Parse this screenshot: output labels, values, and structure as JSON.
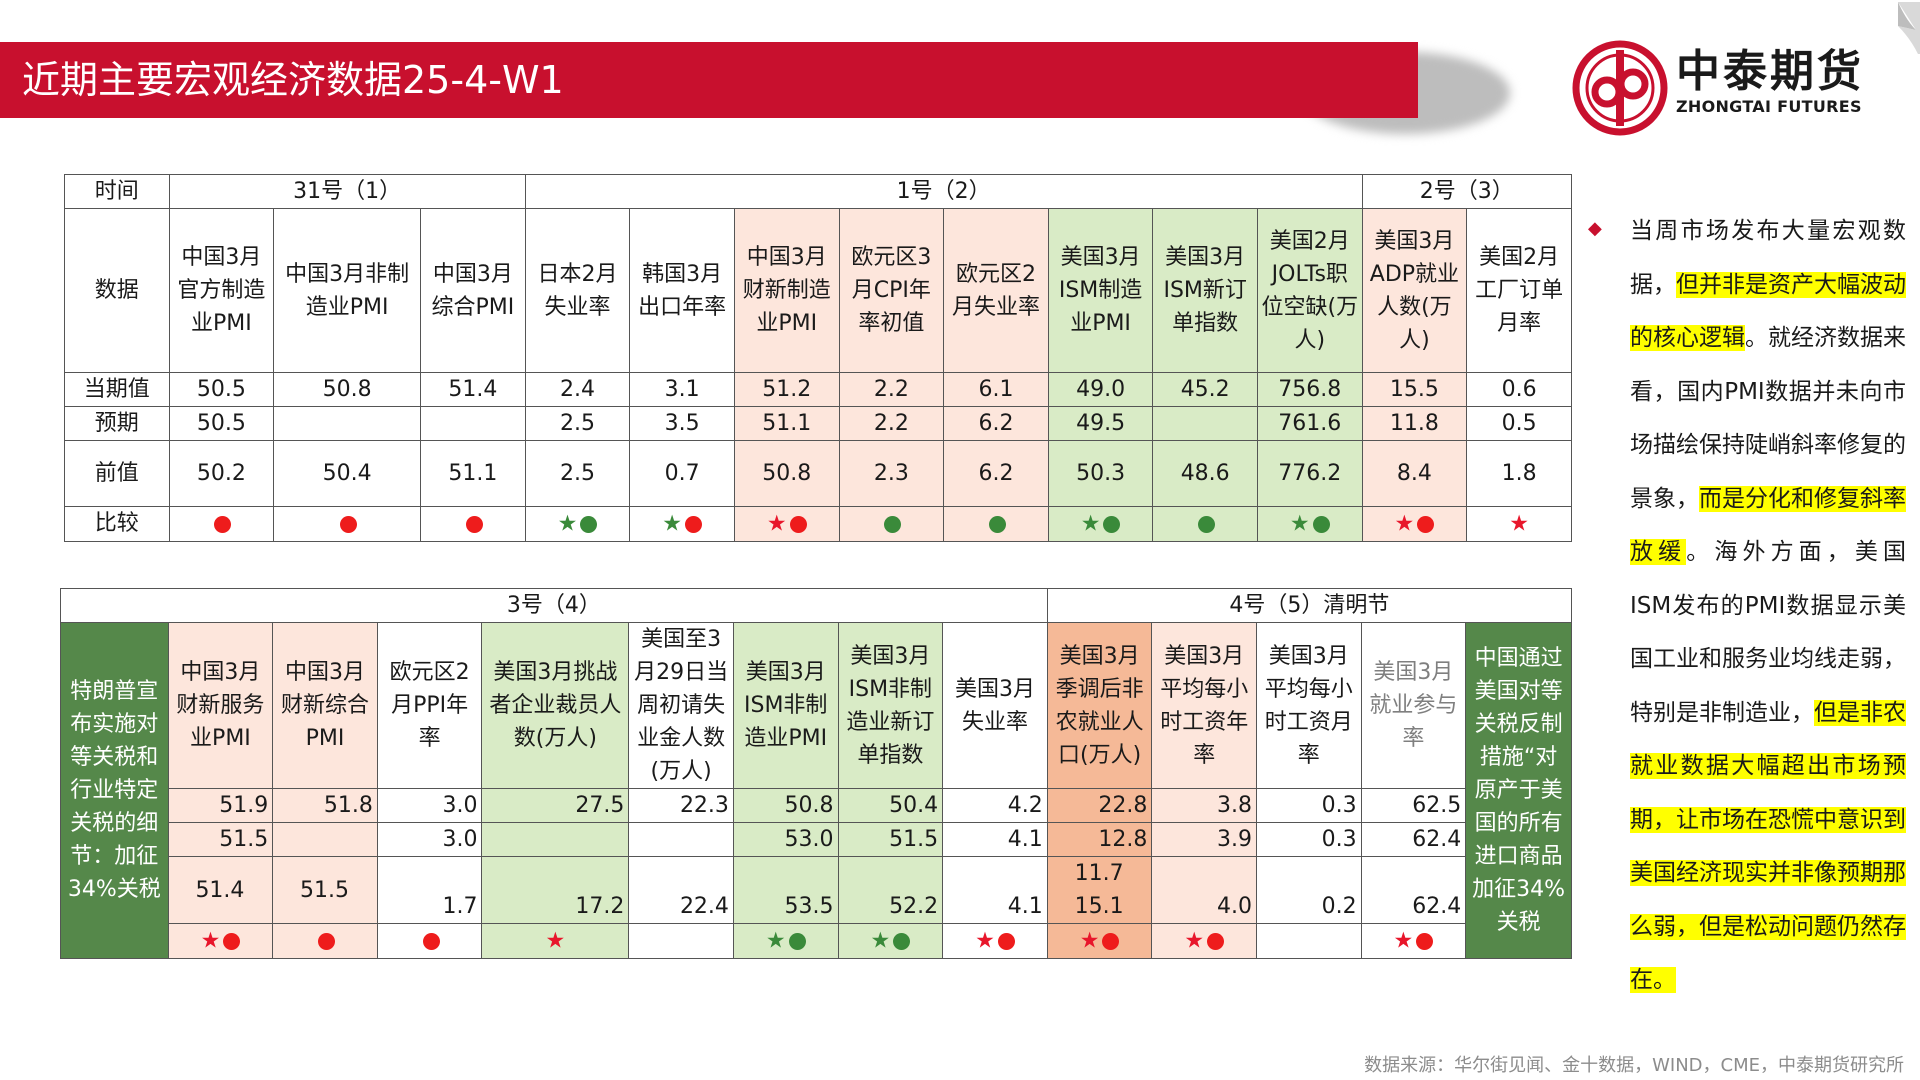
{
  "header": {
    "title": "近期主要宏观经济数据25-4-W1",
    "brand_cn": "中泰期货",
    "brand_en": "ZHONGTAI FUTURES"
  },
  "colors": {
    "banner": "#c8102e",
    "star": "#e8162b",
    "dot_red": "#ee1c1c",
    "dot_green": "#3a8a3a",
    "pink": "#fde6dc",
    "light_green": "#d9ebc6",
    "dark_green": "#55884a",
    "salmon": "#f5b997",
    "highlight": "#ffff00"
  },
  "table1": {
    "time_label": "时间",
    "groups": [
      "31号（1）",
      "1号（2）",
      "2号（3）"
    ],
    "row_labels": [
      "数据",
      "当期值",
      "预期",
      "前值",
      "比较"
    ],
    "columns": [
      {
        "name": "中国3月官方制造业PMI",
        "current": "50.5",
        "expected": "50.5",
        "previous": "50.2",
        "marks": [
          "red"
        ]
      },
      {
        "name": "中国3月非制造业PMI",
        "current": "50.8",
        "expected": "",
        "previous": "50.4",
        "marks": [
          "red"
        ]
      },
      {
        "name": "中国3月综合PMI",
        "current": "51.4",
        "expected": "",
        "previous": "51.1",
        "marks": [
          "red"
        ]
      },
      {
        "name": "日本2月失业率",
        "current": "2.4",
        "expected": "2.5",
        "previous": "2.5",
        "marks": [
          "gstar",
          "green"
        ]
      },
      {
        "name": "韩国3月出口年率",
        "current": "3.1",
        "expected": "3.5",
        "previous": "0.7",
        "marks": [
          "gstar",
          "red"
        ]
      },
      {
        "name": "中国3月财新制造业PMI",
        "current": "51.2",
        "expected": "51.1",
        "previous": "50.8",
        "marks": [
          "star",
          "red"
        ]
      },
      {
        "name": "欧元区3月CPI年率初值",
        "current": "2.2",
        "expected": "2.2",
        "previous": "2.3",
        "marks": [
          "green"
        ]
      },
      {
        "name": "欧元区2月失业率",
        "current": "6.1",
        "expected": "6.2",
        "previous": "6.2",
        "marks": [
          "green"
        ]
      },
      {
        "name": "美国3月ISM制造业PMI",
        "current": "49.0",
        "expected": "49.5",
        "previous": "50.3",
        "marks": [
          "gstar",
          "green"
        ]
      },
      {
        "name": "美国3月ISM新订单指数",
        "current": "45.2",
        "expected": "",
        "previous": "48.6",
        "marks": [
          "green"
        ]
      },
      {
        "name": "美国2月JOLTs职位空缺(万人)",
        "current": "756.8",
        "expected": "761.6",
        "previous": "776.2",
        "marks": [
          "gstar",
          "green"
        ]
      },
      {
        "name": "美国3月ADP就业人数(万人)",
        "current": "15.5",
        "expected": "11.8",
        "previous": "8.4",
        "marks": [
          "star",
          "red"
        ]
      },
      {
        "name": "美国2月工厂订单月率",
        "current": "0.6",
        "expected": "0.5",
        "previous": "1.8",
        "marks": [
          "star"
        ]
      }
    ]
  },
  "table2": {
    "groups": [
      "3号（4）",
      "4号（5）清明节"
    ],
    "left_note": "特朗普宣布实施对等关税和行业特定关税的细节：加征34%关税",
    "right_note": "中国通过美国对等关税反制措施“对原产于美国的所有进口商品加征34%关税",
    "columns": [
      {
        "name": "中国3月财新服务业PMI",
        "current": "51.9",
        "expected": "51.5",
        "previous": "51.4",
        "marks": [
          "star",
          "red"
        ]
      },
      {
        "name": "中国3月财新综合PMI",
        "current": "51.8",
        "expected": "",
        "previous": "51.5",
        "marks": [
          "red"
        ]
      },
      {
        "name": "欧元区2月PPI年率",
        "current": "3.0",
        "expected": "3.0",
        "previous": "1.7",
        "marks": [
          "red"
        ]
      },
      {
        "name": "美国3月挑战者企业裁员人数(万人)",
        "current": "27.5",
        "expected": "",
        "previous": "17.2",
        "marks": [
          "star"
        ]
      },
      {
        "name": "美国至3月29日当周初请失业金人数(万人)",
        "current": "22.3",
        "expected": "",
        "previous": "22.4",
        "marks": []
      },
      {
        "name": "美国3月ISM非制造业PMI",
        "current": "50.8",
        "expected": "53.0",
        "previous": "53.5",
        "marks": [
          "gstar",
          "green"
        ]
      },
      {
        "name": "美国3月ISM非制造业新订单指数",
        "current": "50.4",
        "expected": "51.5",
        "previous": "52.2",
        "marks": [
          "gstar",
          "green"
        ]
      },
      {
        "name": "美国3月失业率",
        "current": "4.2",
        "expected": "4.1",
        "previous": "4.1",
        "marks": [
          "star",
          "red"
        ]
      },
      {
        "name": "美国3月季调后非农就业人口(万人)",
        "current": "22.8",
        "expected": "12.8",
        "previous_extra": "11.7",
        "previous": "15.1",
        "marks": [
          "star",
          "red"
        ]
      },
      {
        "name": "美国3月平均每小时工资年率",
        "current": "3.8",
        "expected": "3.9",
        "previous": "4.0",
        "marks": [
          "star",
          "red"
        ]
      },
      {
        "name": "美国3月平均每小时工资月率",
        "current": "0.3",
        "expected": "0.3",
        "previous": "0.2",
        "marks": []
      },
      {
        "name": "美国3月就业参与率",
        "current": "62.5",
        "expected": "62.4",
        "previous": "62.4",
        "marks": [
          "star",
          "red"
        ]
      }
    ]
  },
  "notes": {
    "bullet": "◆",
    "p1": "当周市场发布大量宏观数据，",
    "p2": "但并非是资产大幅波动的核心逻辑",
    "p3": "。就经济数据来看，国内PMI数据并未向市场描绘保持陡峭斜率修复的景象，",
    "p4": "而是分化和修复斜率放缓",
    "p5": "。海外方面，美国 ISM发布的PMI数据显示美国工业和服务业均线走弱，特别是非制造业，",
    "p6": "但是非农就业数据大幅超出市场预期，让市场在恐慌中意识到美国经济现实并非像预期那么弱，但是松动问题仍然存在。"
  },
  "source": "数据来源：华尔街见闻、金十数据，WIND，CME，中泰期货研究所"
}
